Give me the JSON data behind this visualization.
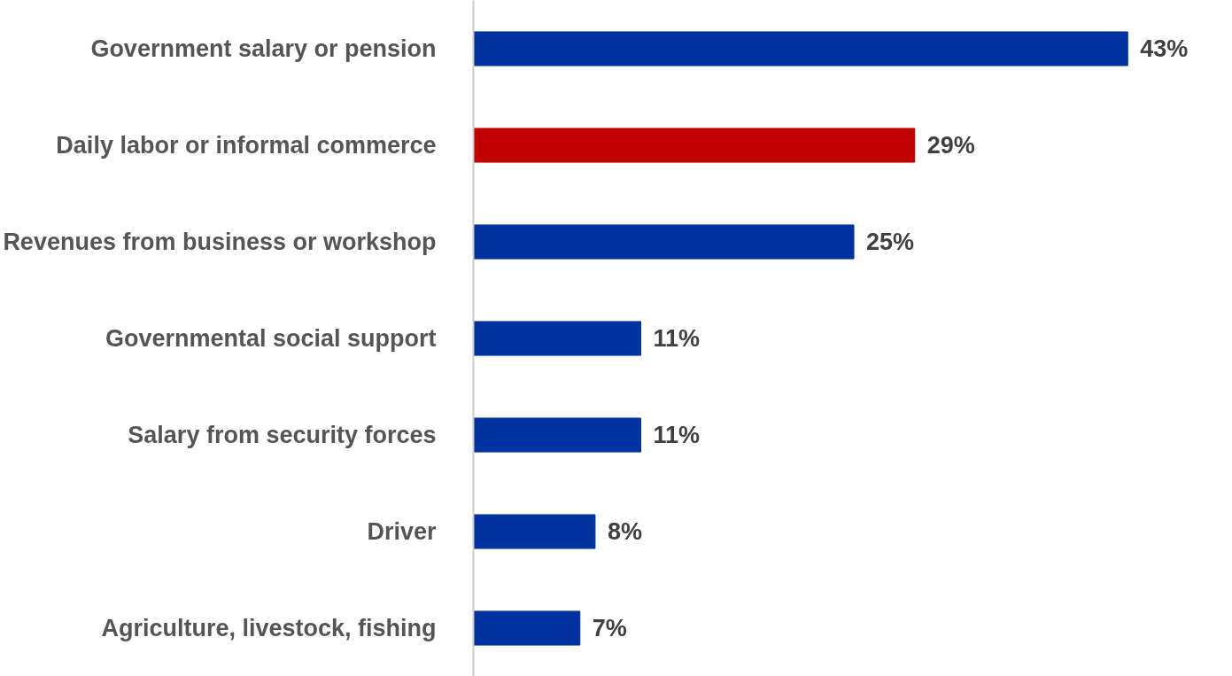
{
  "chart_data": {
    "type": "bar",
    "orientation": "horizontal",
    "categories": [
      "Government salary or pension",
      "Daily labor or informal commerce",
      "Revenues from business or workshop",
      "Governmental social support",
      "Salary from security forces",
      "Driver",
      "Agriculture, livestock, fishing"
    ],
    "values": [
      43,
      29,
      25,
      11,
      11,
      8,
      7
    ],
    "colors": [
      "#0033a0",
      "#c00000",
      "#0033a0",
      "#0033a0",
      "#0033a0",
      "#0033a0",
      "#0033a0"
    ],
    "value_labels": [
      "43%",
      "29%",
      "25%",
      "11%",
      "11%",
      "8%",
      "7%"
    ],
    "grid": false
  }
}
